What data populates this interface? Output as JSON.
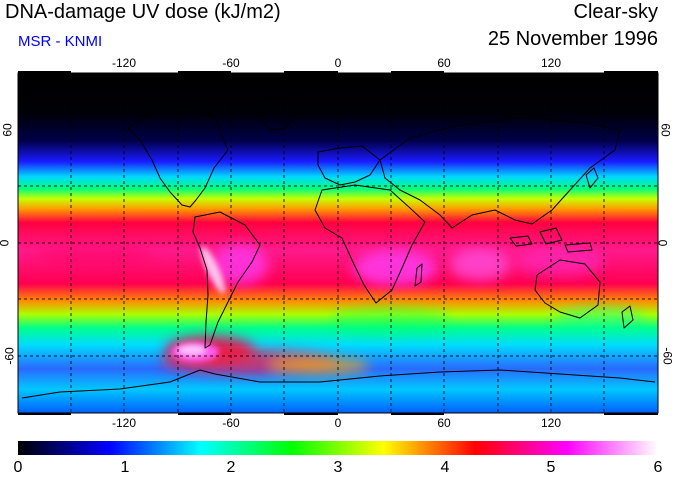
{
  "header": {
    "title": "DNA-damage UV dose (kJ/m2)",
    "subtitle": "MSR - KNMI",
    "condition": "Clear-sky",
    "date": "25 November 1996"
  },
  "map": {
    "lon_labels_top": [
      "-120",
      "-60",
      "0",
      "60",
      "120"
    ],
    "lon_labels_bottom": [
      "-120",
      "-60",
      "0",
      "60",
      "120"
    ],
    "lat_labels_left": [
      "60",
      "0",
      "-60"
    ],
    "lat_labels_right": [
      "60",
      "0",
      "-60"
    ]
  },
  "colorbar": {
    "ticks": [
      "0",
      "1",
      "2",
      "3",
      "4",
      "5",
      "6"
    ],
    "colors": [
      "#000000",
      "#0000ff",
      "#00ffff",
      "#00ff00",
      "#ffff00",
      "#ff0000",
      "#ff00ff",
      "#ffffff"
    ]
  }
}
